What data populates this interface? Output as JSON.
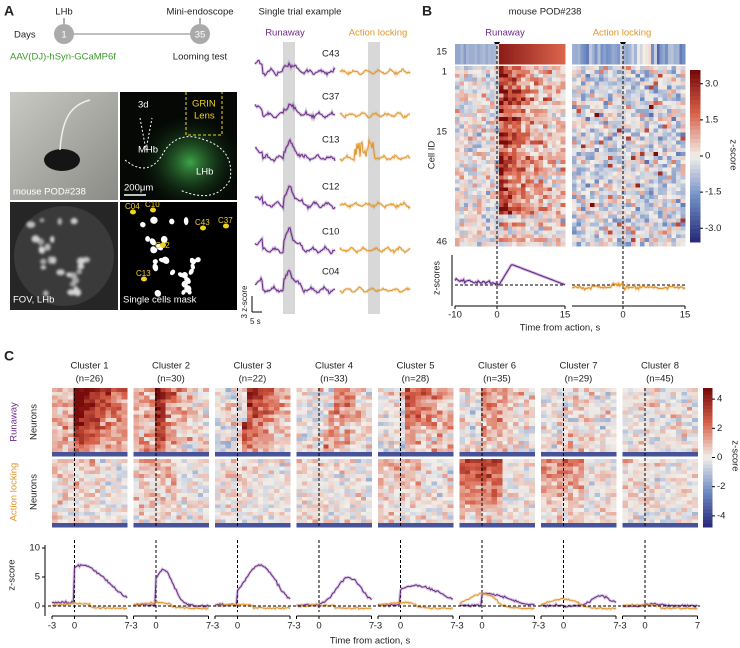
{
  "panel_A": {
    "label": "A",
    "days_label": "Days",
    "day_start": 1,
    "day_end": 35,
    "stage_start": "LHb",
    "stage_end": "Mini-endoscope",
    "virus": "AAV(DJ)-hSyn-GCaMP6f",
    "test": "Looming test",
    "photos": {
      "mouse_caption": "mouse POD#238",
      "fov_caption": "FOV, LHb",
      "mask_caption": "Single cells mask",
      "anatomy": {
        "ventricle": "3d",
        "mhb": "MHb",
        "lhb": "LHb",
        "grin": "GRIN",
        "lens": "Lens",
        "scale_bar": "200μm"
      },
      "mask_cells": [
        "C04",
        "C10",
        "C12",
        "C43",
        "C37",
        "C13"
      ]
    },
    "single_trial": {
      "title": "Single trial example",
      "runaway": "Runaway",
      "action_locking": "Action locking",
      "cells": [
        "C43",
        "C37",
        "C13",
        "C12",
        "C10",
        "C04"
      ],
      "scale_y": "3 z-score",
      "scale_x": "5 s"
    }
  },
  "panel_B": {
    "label": "B",
    "title": "mouse POD#238",
    "runaway": "Runaway",
    "action_locking": "Action locking",
    "strip_label": 15,
    "y_label": "Cell ID",
    "cell_ticks": [
      1,
      15,
      46
    ],
    "colorbar_label": "z-score",
    "colorbar_ticks": [
      "3.0",
      "1.5",
      "0",
      "-1.5",
      "-3.0"
    ],
    "trace_y_label": "z-scores",
    "left_x_ticks": [
      -10,
      0,
      15
    ],
    "right_x_ticks": [
      0,
      15
    ],
    "x_label": "Time from action, s"
  },
  "panel_C": {
    "label": "C",
    "clusters": [
      {
        "name": "Cluster 1",
        "n": "(n=26)"
      },
      {
        "name": "Cluster 2",
        "n": "(n=30)"
      },
      {
        "name": "Cluster 3",
        "n": "(n=22)"
      },
      {
        "name": "Cluster 4",
        "n": "(n=33)"
      },
      {
        "name": "Cluster 5",
        "n": "(n=28)"
      },
      {
        "name": "Cluster 6",
        "n": "(n=35)"
      },
      {
        "name": "Cluster 7",
        "n": "(n=29)"
      },
      {
        "name": "Cluster 8",
        "n": "(n=45)"
      }
    ],
    "runaway": "Runaway",
    "action_locking": "Action locking",
    "row_label": "Neurons",
    "colorbar_label": "z-score",
    "colorbar_ticks": [
      4,
      2,
      0,
      -2,
      -4
    ],
    "trace_y_label": "z-score",
    "y_ticks": [
      10,
      5,
      0
    ],
    "x_ticks": [
      -3,
      0,
      7
    ],
    "x_label": "Time from action, s"
  }
}
